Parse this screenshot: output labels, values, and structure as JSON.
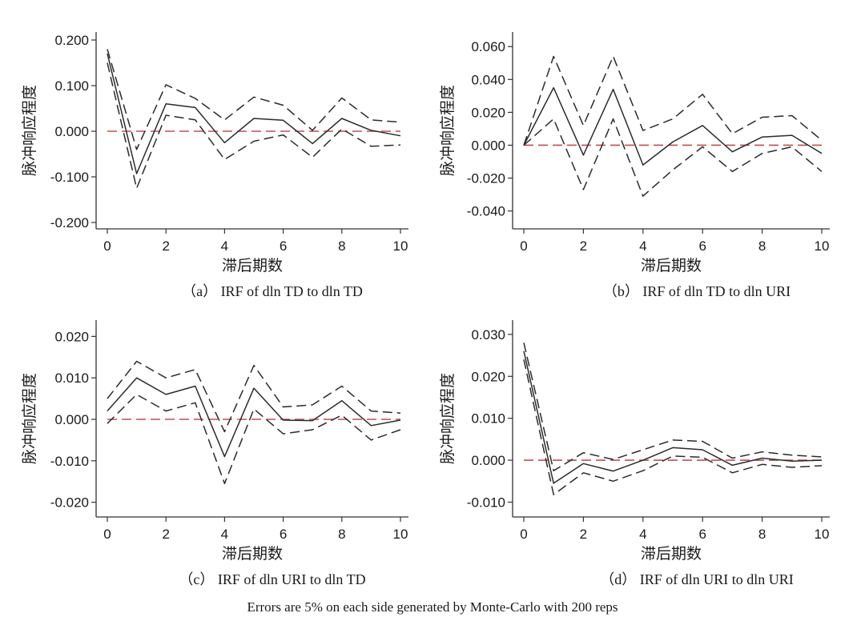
{
  "figure": {
    "footnote": "Errors are 5% on each side generated by Monte-Carlo with 200 reps",
    "colors": {
      "line": "#2b2b2b",
      "zero_line": "#c0504d",
      "axis": "#333333"
    }
  },
  "chart_data": [
    {
      "type": "line",
      "caption": "（a） IRF of dln TD to dln TD",
      "xlabel": "滞后期数",
      "ylabel": "脉冲响应程度",
      "xlim": [
        0,
        10
      ],
      "ylim": [
        -0.2,
        0.2
      ],
      "xticks": [
        0,
        2,
        4,
        6,
        8,
        10
      ],
      "yticks": [
        -0.2,
        -0.1,
        0,
        0.1,
        0.2
      ],
      "ytick_labels": [
        "-0.200",
        "-0.100",
        "0.000",
        "0.100",
        "0.200"
      ],
      "x": [
        0,
        1,
        2,
        3,
        4,
        5,
        6,
        7,
        8,
        9,
        10
      ],
      "series": [
        {
          "name": "irf",
          "style": "solid",
          "values": [
            0.17,
            -0.093,
            0.06,
            0.052,
            -0.025,
            0.028,
            0.024,
            -0.027,
            0.028,
            0.002,
            -0.01
          ]
        },
        {
          "name": "upper",
          "style": "dashed",
          "values": [
            0.18,
            -0.04,
            0.102,
            0.072,
            0.025,
            0.075,
            0.057,
            0.002,
            0.073,
            0.025,
            0.02
          ]
        },
        {
          "name": "lower",
          "style": "dashed",
          "values": [
            0.15,
            -0.125,
            0.035,
            0.025,
            -0.062,
            -0.022,
            -0.008,
            -0.057,
            0.005,
            -0.033,
            -0.03
          ]
        }
      ],
      "zero_line": 0
    },
    {
      "type": "line",
      "caption": "（b） IRF of dln TD to dln URI",
      "xlabel": "滞后期数",
      "ylabel": "脉冲响应程度",
      "xlim": [
        0,
        10
      ],
      "ylim": [
        -0.047,
        0.064
      ],
      "xticks": [
        0,
        2,
        4,
        6,
        8,
        10
      ],
      "yticks": [
        -0.04,
        -0.02,
        0,
        0.02,
        0.04,
        0.06
      ],
      "ytick_labels": [
        "-0.040",
        "-0.020",
        "0.000",
        "0.020",
        "0.040",
        "0.060"
      ],
      "x": [
        0,
        1,
        2,
        3,
        4,
        5,
        6,
        7,
        8,
        9,
        10
      ],
      "series": [
        {
          "name": "irf",
          "style": "solid",
          "values": [
            0,
            0.035,
            -0.006,
            0.034,
            -0.012,
            0.002,
            0.012,
            -0.004,
            0.005,
            0.006,
            -0.005
          ]
        },
        {
          "name": "upper",
          "style": "dashed",
          "values": [
            0,
            0.054,
            0.012,
            0.054,
            0.009,
            0.016,
            0.031,
            0.007,
            0.017,
            0.018,
            0.003
          ]
        },
        {
          "name": "lower",
          "style": "dashed",
          "values": [
            0,
            0.016,
            -0.027,
            0.016,
            -0.031,
            -0.015,
            -0.001,
            -0.016,
            -0.005,
            -0.001,
            -0.016
          ]
        }
      ],
      "zero_line": 0
    },
    {
      "type": "line",
      "caption": "（c） IRF of dln URI to dln TD",
      "xlabel": "滞后期数",
      "ylabel": "脉冲响应程度",
      "xlim": [
        0,
        10
      ],
      "ylim": [
        -0.022,
        0.022
      ],
      "xticks": [
        0,
        2,
        4,
        6,
        8,
        10
      ],
      "yticks": [
        -0.02,
        -0.01,
        0,
        0.01,
        0.02
      ],
      "ytick_labels": [
        "-0.020",
        "-0.010",
        "0.000",
        "0.010",
        "0.020"
      ],
      "x": [
        0,
        1,
        2,
        3,
        4,
        5,
        6,
        7,
        8,
        9,
        10
      ],
      "series": [
        {
          "name": "irf",
          "style": "solid",
          "values": [
            0.002,
            0.01,
            0.006,
            0.008,
            -0.009,
            0.0075,
            -0.0002,
            -0.0003,
            0.0045,
            -0.0015,
            -0.0002
          ]
        },
        {
          "name": "upper",
          "style": "dashed",
          "values": [
            0.005,
            0.014,
            0.01,
            0.012,
            -0.003,
            0.013,
            0.003,
            0.0035,
            0.008,
            0.002,
            0.0015
          ]
        },
        {
          "name": "lower",
          "style": "dashed",
          "values": [
            -0.001,
            0.006,
            0.002,
            0.004,
            -0.0155,
            0.0025,
            -0.0035,
            -0.0025,
            0.001,
            -0.005,
            -0.0025
          ]
        }
      ],
      "zero_line": 0
    },
    {
      "type": "line",
      "caption": "（d） IRF of dln URI to dln URI",
      "xlabel": "滞后期数",
      "ylabel": "脉冲响应程度",
      "xlim": [
        0,
        10
      ],
      "ylim": [
        -0.012,
        0.0315
      ],
      "xticks": [
        0,
        2,
        4,
        6,
        8,
        10
      ],
      "yticks": [
        -0.01,
        0,
        0.01,
        0.02,
        0.03
      ],
      "ytick_labels": [
        "-0.010",
        "0.000",
        "0.010",
        "0.020",
        "0.030"
      ],
      "x": [
        0,
        1,
        2,
        3,
        4,
        5,
        6,
        7,
        8,
        9,
        10
      ],
      "series": [
        {
          "name": "irf",
          "style": "solid",
          "values": [
            0.026,
            -0.0055,
            -0.0008,
            -0.0026,
            0.0,
            0.003,
            0.0025,
            -0.0012,
            0.0005,
            -0.0002,
            0.0
          ]
        },
        {
          "name": "upper",
          "style": "dashed",
          "values": [
            0.028,
            -0.0025,
            0.0018,
            0.0002,
            0.0025,
            0.0048,
            0.0045,
            0.0005,
            0.002,
            0.0012,
            0.0008
          ]
        },
        {
          "name": "lower",
          "style": "dashed",
          "values": [
            0.024,
            -0.0082,
            -0.003,
            -0.005,
            -0.0025,
            0.001,
            0.0007,
            -0.003,
            -0.001,
            -0.0017,
            -0.0013
          ]
        }
      ],
      "zero_line": 0
    }
  ]
}
